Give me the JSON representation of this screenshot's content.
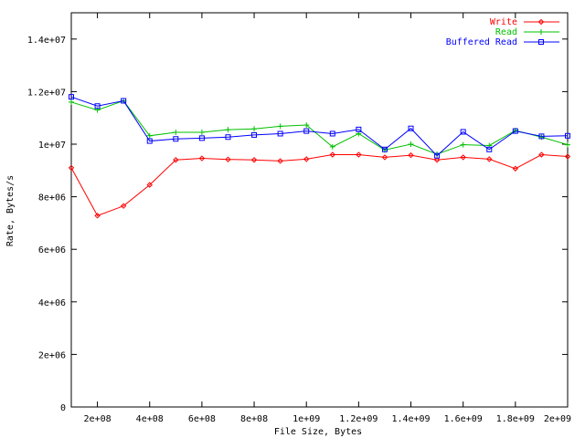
{
  "chart_data": {
    "type": "line",
    "xlabel": "File Size, Bytes",
    "ylabel": "Rate, Bytes/s",
    "xlim": [
      100000000,
      2000000000
    ],
    "ylim": [
      0,
      15000000
    ],
    "x_ticks": [
      {
        "value": 200000000,
        "label": "2e+08"
      },
      {
        "value": 400000000,
        "label": "4e+08"
      },
      {
        "value": 600000000,
        "label": "6e+08"
      },
      {
        "value": 800000000,
        "label": "8e+08"
      },
      {
        "value": 1000000000,
        "label": "1e+09"
      },
      {
        "value": 1200000000,
        "label": "1.2e+09"
      },
      {
        "value": 1400000000,
        "label": "1.4e+09"
      },
      {
        "value": 1600000000,
        "label": "1.6e+09"
      },
      {
        "value": 1800000000,
        "label": "1.8e+09"
      },
      {
        "value": 2000000000,
        "label": "2e+09"
      }
    ],
    "y_ticks": [
      {
        "value": 0,
        "label": "0"
      },
      {
        "value": 2000000,
        "label": "2e+06"
      },
      {
        "value": 4000000,
        "label": "4e+06"
      },
      {
        "value": 6000000,
        "label": "6e+06"
      },
      {
        "value": 8000000,
        "label": "8e+06"
      },
      {
        "value": 10000000,
        "label": "1e+07"
      },
      {
        "value": 12000000,
        "label": "1.2e+07"
      },
      {
        "value": 14000000,
        "label": "1.4e+07"
      }
    ],
    "grid": false,
    "legend_position": "top-right",
    "x": [
      100000000,
      200000000,
      300000000,
      400000000,
      500000000,
      600000000,
      700000000,
      800000000,
      900000000,
      1000000000,
      1100000000,
      1200000000,
      1300000000,
      1400000000,
      1500000000,
      1600000000,
      1700000000,
      1800000000,
      1900000000,
      2000000000
    ],
    "series": [
      {
        "name": "Write",
        "color": "#ff0000",
        "marker": "diamond",
        "values": [
          9100000,
          7280000,
          7650000,
          8450000,
          9400000,
          9460000,
          9420000,
          9400000,
          9360000,
          9430000,
          9600000,
          9600000,
          9500000,
          9580000,
          9400000,
          9500000,
          9430000,
          9070000,
          9600000,
          9530000
        ]
      },
      {
        "name": "Read",
        "color": "#00c000",
        "marker": "plus",
        "values": [
          11600000,
          11300000,
          11650000,
          10320000,
          10450000,
          10450000,
          10550000,
          10580000,
          10680000,
          10730000,
          9900000,
          10400000,
          9780000,
          10000000,
          9620000,
          9980000,
          9950000,
          10520000,
          10270000,
          9980000
        ]
      },
      {
        "name": "Buffered Read",
        "color": "#0000ff",
        "marker": "square",
        "values": [
          11800000,
          11450000,
          11650000,
          10120000,
          10200000,
          10230000,
          10270000,
          10350000,
          10400000,
          10500000,
          10400000,
          10560000,
          9800000,
          10600000,
          9560000,
          10470000,
          9800000,
          10500000,
          10300000,
          10320000
        ]
      }
    ]
  }
}
